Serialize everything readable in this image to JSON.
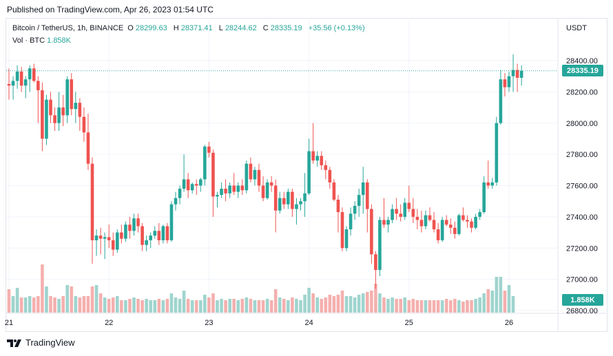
{
  "published_text": "Published on TradingView.com, Apr 26, 2023 01:54 UTC",
  "header": {
    "symbol": "Bitcoin / TetherUS, 1h, BINANCE",
    "o_label": "O",
    "o_value": "28299.63",
    "h_label": "H",
    "h_value": "28371.41",
    "l_label": "L",
    "l_value": "28244.62",
    "c_label": "C",
    "c_value": "28335.19",
    "change": "+35.56 (+0.13%)"
  },
  "volume_header": {
    "label": "Vol · BTC",
    "value": "1.858K"
  },
  "footer": {
    "brand": "TradingView"
  },
  "colors": {
    "up": "#26a69a",
    "down": "#ef5350",
    "up_vol": "#9fd4ce",
    "down_vol": "#f4b0ae",
    "grid": "#f0f3fa",
    "text": "#131722"
  },
  "chart_data": {
    "type": "candlestick",
    "symbol": "BTCUSDT",
    "exchange": "BINANCE",
    "interval": "1h",
    "currency_label": "USDT",
    "last_price": "28335.19",
    "last_volume": "1.858K",
    "ylim": [
      26800,
      28450
    ],
    "y_ticks": [
      "28400.00",
      "28200.00",
      "28000.00",
      "27800.00",
      "27600.00",
      "27400.00",
      "27200.00",
      "27000.00",
      "26800.00"
    ],
    "x_ticks": [
      {
        "label": "21",
        "index": 0
      },
      {
        "label": "22",
        "index": 24
      },
      {
        "label": "23",
        "index": 48
      },
      {
        "label": "24",
        "index": 72
      },
      {
        "label": "25",
        "index": 96
      },
      {
        "label": "26",
        "index": 120
      }
    ],
    "grid": true,
    "candles": [
      [
        28250,
        28350,
        28150,
        28240
      ],
      [
        28240,
        28300,
        28150,
        28270
      ],
      [
        28270,
        28370,
        28220,
        28330
      ],
      [
        28330,
        28360,
        28200,
        28240
      ],
      [
        28240,
        28300,
        28160,
        28280
      ],
      [
        28280,
        28370,
        28200,
        28350
      ],
      [
        28350,
        28380,
        28260,
        28270
      ],
      [
        28270,
        28300,
        28000,
        28210
      ],
      [
        28210,
        28260,
        27820,
        27900
      ],
      [
        27900,
        28180,
        27860,
        28150
      ],
      [
        28150,
        28200,
        28000,
        28050
      ],
      [
        28050,
        28100,
        27950,
        28000
      ],
      [
        28000,
        28200,
        27950,
        28100
      ],
      [
        28100,
        28180,
        27980,
        28050
      ],
      [
        28050,
        28300,
        28000,
        28280
      ],
      [
        28280,
        28320,
        28050,
        28090
      ],
      [
        28090,
        28200,
        28000,
        28130
      ],
      [
        28130,
        28160,
        27950,
        28040
      ],
      [
        28040,
        28100,
        27880,
        27940
      ],
      [
        27940,
        28060,
        27700,
        27740
      ],
      [
        27740,
        27780,
        27100,
        27250
      ],
      [
        27250,
        27320,
        27150,
        27280
      ],
      [
        27280,
        27330,
        27160,
        27260
      ],
      [
        27260,
        27300,
        27130,
        27270
      ],
      [
        27270,
        27350,
        27200,
        27250
      ],
      [
        27250,
        27300,
        27150,
        27190
      ],
      [
        27190,
        27320,
        27170,
        27300
      ],
      [
        27300,
        27350,
        27230,
        27260
      ],
      [
        27260,
        27370,
        27240,
        27350
      ],
      [
        27350,
        27400,
        27260,
        27310
      ],
      [
        27310,
        27420,
        27280,
        27390
      ],
      [
        27390,
        27420,
        27300,
        27340
      ],
      [
        27340,
        27360,
        27180,
        27220
      ],
      [
        27220,
        27280,
        27180,
        27250
      ],
      [
        27250,
        27300,
        27200,
        27280
      ],
      [
        27280,
        27340,
        27260,
        27310
      ],
      [
        27310,
        27360,
        27220,
        27250
      ],
      [
        27250,
        27350,
        27230,
        27340
      ],
      [
        27340,
        27360,
        27230,
        27250
      ],
      [
        27250,
        27500,
        27240,
        27480
      ],
      [
        27480,
        27560,
        27440,
        27520
      ],
      [
        27520,
        27600,
        27480,
        27580
      ],
      [
        27580,
        27800,
        27560,
        27640
      ],
      [
        27640,
        27680,
        27520,
        27570
      ],
      [
        27570,
        27620,
        27550,
        27610
      ],
      [
        27610,
        27640,
        27540,
        27600
      ],
      [
        27600,
        27650,
        27560,
        27640
      ],
      [
        27640,
        27860,
        27600,
        27850
      ],
      [
        27850,
        27880,
        27780,
        27810
      ],
      [
        27810,
        27830,
        27400,
        27530
      ],
      [
        27530,
        27560,
        27460,
        27540
      ],
      [
        27540,
        27620,
        27520,
        27580
      ],
      [
        27580,
        27640,
        27500,
        27550
      ],
      [
        27550,
        27620,
        27520,
        27600
      ],
      [
        27600,
        27680,
        27540,
        27560
      ],
      [
        27560,
        27620,
        27520,
        27600
      ],
      [
        27600,
        27640,
        27540,
        27570
      ],
      [
        27570,
        27760,
        27550,
        27740
      ],
      [
        27740,
        27780,
        27620,
        27640
      ],
      [
        27640,
        27720,
        27600,
        27700
      ],
      [
        27700,
        27740,
        27560,
        27600
      ],
      [
        27600,
        27660,
        27500,
        27520
      ],
      [
        27520,
        27640,
        27510,
        27620
      ],
      [
        27620,
        27660,
        27560,
        27600
      ],
      [
        27600,
        27640,
        27300,
        27440
      ],
      [
        27440,
        27560,
        27420,
        27520
      ],
      [
        27520,
        27560,
        27450,
        27480
      ],
      [
        27480,
        27580,
        27450,
        27560
      ],
      [
        27560,
        27580,
        27400,
        27450
      ],
      [
        27450,
        27520,
        27350,
        27480
      ],
      [
        27480,
        27520,
        27440,
        27500
      ],
      [
        27500,
        27680,
        27400,
        27550
      ],
      [
        27550,
        27900,
        27540,
        27820
      ],
      [
        27820,
        28000,
        27740,
        27760
      ],
      [
        27760,
        27820,
        27720,
        27790
      ],
      [
        27790,
        27820,
        27700,
        27730
      ],
      [
        27730,
        27760,
        27640,
        27700
      ],
      [
        27700,
        27720,
        27580,
        27620
      ],
      [
        27620,
        27640,
        27500,
        27510
      ],
      [
        27510,
        27540,
        27300,
        27430
      ],
      [
        27430,
        27460,
        27180,
        27200
      ],
      [
        27200,
        27340,
        27180,
        27320
      ],
      [
        27320,
        27460,
        27280,
        27420
      ],
      [
        27420,
        27500,
        27380,
        27470
      ],
      [
        27470,
        27580,
        27400,
        27540
      ],
      [
        27540,
        27720,
        27420,
        27620
      ],
      [
        27620,
        27640,
        27300,
        27450
      ],
      [
        27450,
        27480,
        27100,
        27160
      ],
      [
        27160,
        27180,
        26940,
        27060
      ],
      [
        27060,
        27400,
        27020,
        27380
      ],
      [
        27380,
        27520,
        27330,
        27350
      ],
      [
        27350,
        27400,
        27300,
        27380
      ],
      [
        27380,
        27480,
        27360,
        27450
      ],
      [
        27450,
        27520,
        27380,
        27420
      ],
      [
        27420,
        27480,
        27370,
        27400
      ],
      [
        27400,
        27520,
        27380,
        27490
      ],
      [
        27490,
        27600,
        27430,
        27450
      ],
      [
        27450,
        27520,
        27360,
        27400
      ],
      [
        27400,
        27450,
        27320,
        27380
      ],
      [
        27380,
        27440,
        27300,
        27340
      ],
      [
        27340,
        27440,
        27320,
        27410
      ],
      [
        27410,
        27460,
        27370,
        27380
      ],
      [
        27380,
        27430,
        27300,
        27320
      ],
      [
        27320,
        27360,
        27230,
        27250
      ],
      [
        27250,
        27400,
        27240,
        27380
      ],
      [
        27380,
        27410,
        27340,
        27350
      ],
      [
        27350,
        27390,
        27290,
        27330
      ],
      [
        27330,
        27370,
        27260,
        27290
      ],
      [
        27290,
        27420,
        27280,
        27410
      ],
      [
        27410,
        27460,
        27370,
        27380
      ],
      [
        27380,
        27410,
        27330,
        27370
      ],
      [
        27370,
        27390,
        27300,
        27330
      ],
      [
        27330,
        27420,
        27320,
        27400
      ],
      [
        27400,
        27450,
        27380,
        27430
      ],
      [
        27430,
        27660,
        27420,
        27620
      ],
      [
        27620,
        27760,
        27580,
        27600
      ],
      [
        27600,
        27650,
        27580,
        27620
      ],
      [
        27620,
        28040,
        27600,
        28000
      ],
      [
        28000,
        28340,
        27990,
        28280
      ],
      [
        28280,
        28320,
        28170,
        28230
      ],
      [
        28230,
        28330,
        28200,
        28300
      ],
      [
        28300,
        28440,
        28200,
        28340
      ],
      [
        28340,
        28380,
        28200,
        28290
      ],
      [
        28290,
        28370,
        28240,
        28335
      ]
    ],
    "volumes": [
      0.85,
      0.6,
      0.9,
      0.55,
      0.55,
      0.6,
      0.55,
      0.6,
      1.75,
      0.95,
      0.6,
      0.55,
      0.5,
      0.6,
      1.0,
      0.95,
      0.6,
      0.55,
      0.6,
      0.6,
      0.95,
      1.0,
      0.7,
      0.55,
      0.5,
      0.55,
      0.6,
      0.45,
      0.45,
      0.5,
      0.55,
      0.5,
      0.45,
      0.5,
      0.45,
      0.45,
      0.5,
      0.45,
      0.5,
      0.7,
      0.55,
      0.5,
      0.8,
      0.5,
      0.45,
      0.45,
      0.45,
      0.65,
      0.55,
      0.7,
      0.45,
      0.5,
      0.45,
      0.5,
      0.5,
      0.45,
      0.5,
      0.55,
      0.5,
      0.45,
      0.45,
      0.45,
      0.5,
      0.45,
      0.85,
      0.55,
      0.5,
      0.45,
      0.55,
      0.5,
      0.45,
      0.65,
      0.9,
      0.7,
      0.55,
      0.5,
      0.55,
      0.65,
      0.6,
      0.65,
      0.8,
      0.6,
      0.6,
      0.55,
      0.65,
      0.7,
      0.75,
      0.8,
      1.05,
      0.7,
      0.55,
      0.5,
      0.55,
      0.5,
      0.5,
      0.55,
      0.45,
      0.5,
      0.45,
      0.45,
      0.45,
      0.45,
      0.45,
      0.45,
      0.45,
      0.5,
      0.45,
      0.5,
      0.45,
      0.4,
      0.45,
      0.45,
      0.5,
      0.55,
      0.7,
      0.85,
      0.8,
      1.3,
      1.3,
      0.8,
      1.0,
      0.6
    ]
  }
}
